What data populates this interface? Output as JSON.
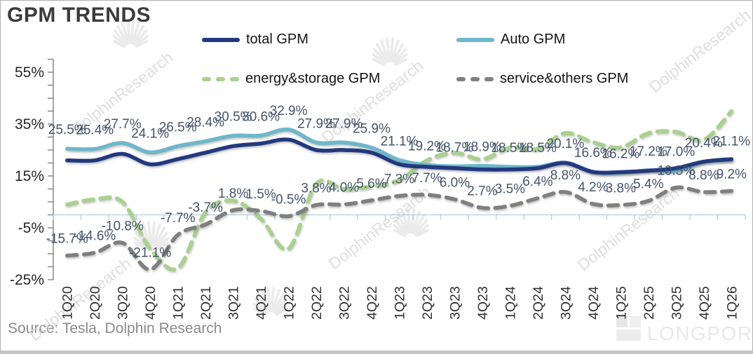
{
  "window": {
    "title": "GPM TRENDS",
    "source_note": "Source: Tesla,  Dolphin Research"
  },
  "watermarks": {
    "brand": "DolphinResearch",
    "longport": "LONGPORT"
  },
  "chart_data": {
    "type": "line",
    "title": "GPM TRENDS",
    "legend_position": "top",
    "grid": false,
    "zero_line": true,
    "categories": [
      "1Q20",
      "2Q20",
      "3Q20",
      "4Q20",
      "1Q21",
      "2Q21",
      "3Q21",
      "4Q21",
      "1Q22",
      "2Q22",
      "3Q22",
      "4Q22",
      "1Q23",
      "2Q23",
      "3Q23",
      "4Q23",
      "1Q24",
      "2Q24",
      "3Q24",
      "4Q24",
      "1Q25",
      "2Q25",
      "3Q25",
      "4Q25",
      "1Q26"
    ],
    "y_axis": {
      "min": -25,
      "max": 60,
      "minor_tick_step": 5,
      "labeled_ticks": [
        {
          "value": 55,
          "label": "55%"
        },
        {
          "value": 35,
          "label": "35%"
        },
        {
          "value": 15,
          "label": "15%"
        },
        {
          "value": -5,
          "label": "-5%"
        },
        {
          "value": -25,
          "label": "-25%"
        }
      ]
    },
    "series": [
      {
        "name": "total GPM",
        "color": "#23397f",
        "line_style": "solid",
        "labels_shown": false,
        "values_estimated": true,
        "values": [
          21,
          21,
          23.5,
          19.5,
          21.5,
          24,
          26.5,
          27.5,
          29,
          25,
          25,
          24,
          19.5,
          18.5,
          18,
          17.5,
          17.5,
          18,
          20,
          16.5,
          16.5,
          17,
          18,
          20.5,
          21.5
        ]
      },
      {
        "name": "Auto GPM",
        "color": "#6eb7cb",
        "line_style": "solid",
        "labels_shown": true,
        "values_estimated": false,
        "values": [
          25.5,
          25.4,
          27.7,
          24.1,
          26.5,
          28.4,
          30.5,
          30.6,
          32.9,
          27.9,
          27.9,
          25.9,
          21.1,
          19.2,
          18.7,
          18.9,
          18.5,
          18.5,
          20.1,
          16.6,
          16.2,
          17.2,
          17.0,
          20.4,
          21.1
        ]
      },
      {
        "name": "energy&storage GPM",
        "color": "#a9d18e",
        "line_style": "dashed",
        "labels_shown": false,
        "values_estimated": true,
        "values": [
          4,
          6,
          5,
          -13,
          -20.5,
          1,
          5.5,
          -1.5,
          -13,
          12,
          10,
          11,
          13.5,
          21,
          24,
          21.5,
          26,
          25.5,
          31.5,
          28,
          26,
          31.5,
          32,
          29,
          40
        ]
      },
      {
        "name": "service&others GPM",
        "color": "#7f7f7f",
        "line_style": "dashed",
        "labels_shown": true,
        "values_estimated": false,
        "values": [
          -15.7,
          -14.6,
          -10.8,
          -21.1,
          -7.7,
          -3.7,
          1.8,
          1.5,
          -0.5,
          3.8,
          4.0,
          5.6,
          7.3,
          7.7,
          6.0,
          2.7,
          3.5,
          6.4,
          8.8,
          4.2,
          3.8,
          5.4,
          10.5,
          8.8,
          9.2
        ]
      }
    ]
  }
}
